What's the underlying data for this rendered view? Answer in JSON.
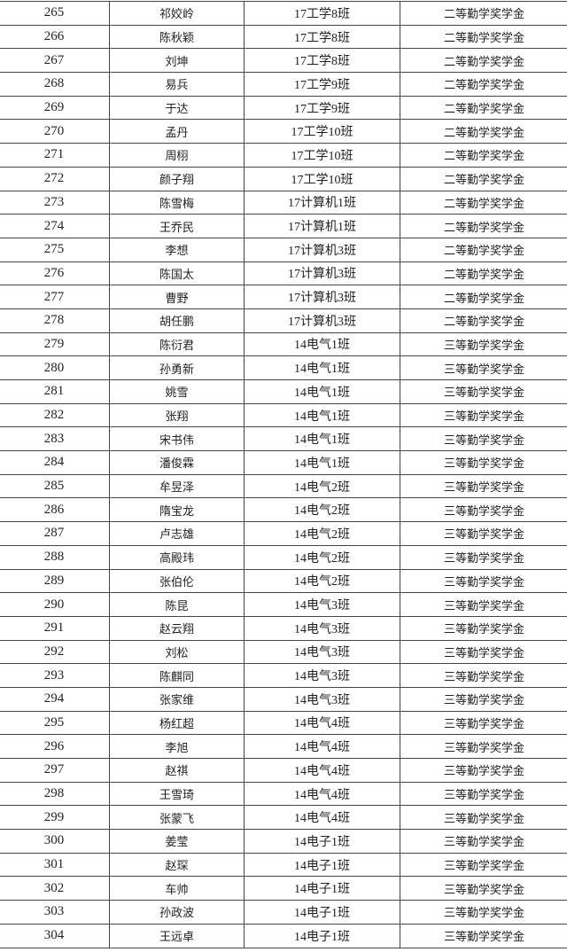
{
  "rows": [
    [
      "265",
      "祁姣岭",
      "17工学8班",
      "二等勤学奖学金"
    ],
    [
      "266",
      "陈秋颖",
      "17工学8班",
      "二等勤学奖学金"
    ],
    [
      "267",
      "刘坤",
      "17工学8班",
      "二等勤学奖学金"
    ],
    [
      "268",
      "易兵",
      "17工学9班",
      "二等勤学奖学金"
    ],
    [
      "269",
      "于达",
      "17工学9班",
      "二等勤学奖学金"
    ],
    [
      "270",
      "孟丹",
      "17工学10班",
      "二等勤学奖学金"
    ],
    [
      "271",
      "周栩",
      "17工学10班",
      "二等勤学奖学金"
    ],
    [
      "272",
      "颜子翔",
      "17工学10班",
      "二等勤学奖学金"
    ],
    [
      "273",
      "陈雪梅",
      "17计算机1班",
      "二等勤学奖学金"
    ],
    [
      "274",
      "王乔民",
      "17计算机1班",
      "二等勤学奖学金"
    ],
    [
      "275",
      "李想",
      "17计算机3班",
      "二等勤学奖学金"
    ],
    [
      "276",
      "陈国太",
      "17计算机3班",
      "二等勤学奖学金"
    ],
    [
      "277",
      "曹野",
      "17计算机3班",
      "二等勤学奖学金"
    ],
    [
      "278",
      "胡任鹏",
      "17计算机3班",
      "二等勤学奖学金"
    ],
    [
      "279",
      "陈衍君",
      "14电气1班",
      "三等勤学奖学金"
    ],
    [
      "280",
      "孙勇新",
      "14电气1班",
      "三等勤学奖学金"
    ],
    [
      "281",
      "姚雪",
      "14电气1班",
      "三等勤学奖学金"
    ],
    [
      "282",
      "张翔",
      "14电气1班",
      "三等勤学奖学金"
    ],
    [
      "283",
      "宋书伟",
      "14电气1班",
      "三等勤学奖学金"
    ],
    [
      "284",
      "潘俊霖",
      "14电气1班",
      "三等勤学奖学金"
    ],
    [
      "285",
      "牟昱泽",
      "14电气2班",
      "三等勤学奖学金"
    ],
    [
      "286",
      "隋宝龙",
      "14电气2班",
      "三等勤学奖学金"
    ],
    [
      "287",
      "卢志雄",
      "14电气2班",
      "三等勤学奖学金"
    ],
    [
      "288",
      "高殿玮",
      "14电气2班",
      "三等勤学奖学金"
    ],
    [
      "289",
      "张伯伦",
      "14电气2班",
      "三等勤学奖学金"
    ],
    [
      "290",
      "陈昆",
      "14电气3班",
      "三等勤学奖学金"
    ],
    [
      "291",
      "赵云翔",
      "14电气3班",
      "三等勤学奖学金"
    ],
    [
      "292",
      "刘松",
      "14电气3班",
      "三等勤学奖学金"
    ],
    [
      "293",
      "陈麒同",
      "14电气3班",
      "三等勤学奖学金"
    ],
    [
      "294",
      "张家维",
      "14电气3班",
      "三等勤学奖学金"
    ],
    [
      "295",
      "杨红超",
      "14电气4班",
      "三等勤学奖学金"
    ],
    [
      "296",
      "李旭",
      "14电气4班",
      "三等勤学奖学金"
    ],
    [
      "297",
      "赵祺",
      "14电气4班",
      "三等勤学奖学金"
    ],
    [
      "298",
      "王雪琦",
      "14电气4班",
      "三等勤学奖学金"
    ],
    [
      "299",
      "张蒙飞",
      "14电气4班",
      "三等勤学奖学金"
    ],
    [
      "300",
      "姜莹",
      "14电子1班",
      "三等勤学奖学金"
    ],
    [
      "301",
      "赵琛",
      "14电子1班",
      "三等勤学奖学金"
    ],
    [
      "302",
      "车帅",
      "14电子1班",
      "三等勤学奖学金"
    ],
    [
      "303",
      "孙政波",
      "14电子1班",
      "三等勤学奖学金"
    ],
    [
      "304",
      "王远卓",
      "14电子1班",
      "三等勤学奖学金"
    ]
  ]
}
